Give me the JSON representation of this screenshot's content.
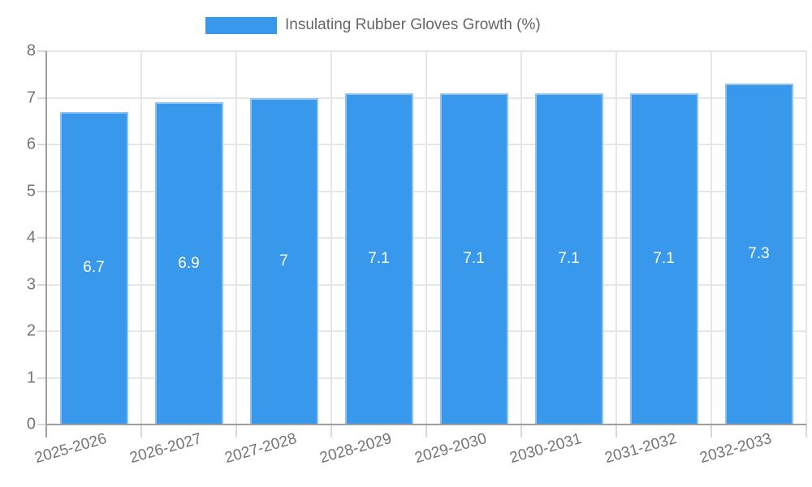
{
  "legend": {
    "label": "Insulating Rubber Gloves Growth (%)"
  },
  "colors": {
    "bar_fill": "#3898EC",
    "bar_border": "#8FC2F1",
    "axis_line": "#9E9E9E",
    "grid_line": "#E6E6E6",
    "tick_mark": "#D8D8D8",
    "axis_label": "#757575",
    "legend_text": "#666666",
    "value_text": "#FFFFFF",
    "background": "#FFFFFF"
  },
  "chart_data": {
    "type": "bar",
    "title": "",
    "legend_label": "Insulating Rubber Gloves Growth (%)",
    "legend_position": "top",
    "categories": [
      "2025-2026",
      "2026-2027",
      "2027-2028",
      "2028-2029",
      "2029-2030",
      "2030-2031",
      "2031-2032",
      "2032-2033"
    ],
    "values": [
      6.7,
      6.9,
      7,
      7.1,
      7.1,
      7.1,
      7.1,
      7.3
    ],
    "value_labels": [
      "6.7",
      "6.9",
      "7",
      "7.1",
      "7.1",
      "7.1",
      "7.1",
      "7.3"
    ],
    "xlabel": "",
    "ylabel": "",
    "ylim": [
      0,
      8
    ],
    "yticks": [
      0,
      1,
      2,
      3,
      4,
      5,
      6,
      7,
      8
    ],
    "grid": true,
    "x_tick_rotation_deg": -16
  }
}
